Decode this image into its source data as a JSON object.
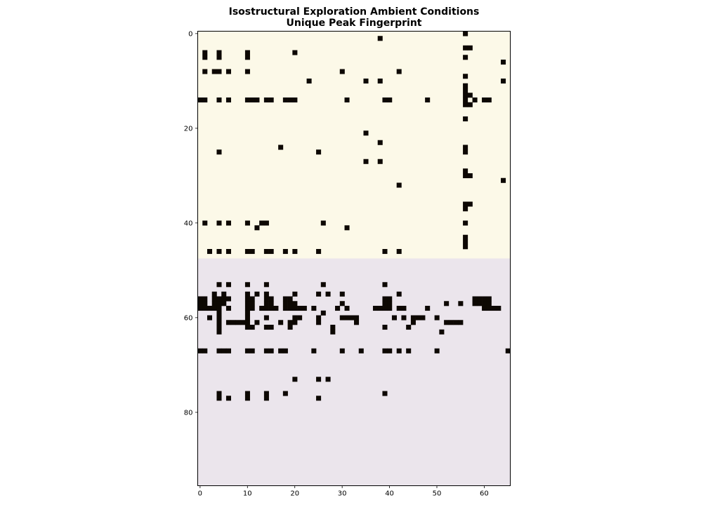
{
  "chart_data": {
    "type": "heatmap",
    "title": "Isostructural Exploration Ambient Conditions",
    "subtitle": "Unique Peak Fingerprint",
    "xlabel": "",
    "ylabel": "",
    "xlim": [
      -0.5,
      65.5
    ],
    "ylim": [
      95.5,
      -0.5
    ],
    "x_ticks": [
      0,
      10,
      20,
      30,
      40,
      50,
      60
    ],
    "y_ticks": [
      0,
      20,
      40,
      60,
      80
    ],
    "n_cols": 66,
    "n_rows": 96,
    "grid": false,
    "legend": "none",
    "row_bands": [
      {
        "rows": [
          0,
          47
        ],
        "background": "#fcf9e8"
      },
      {
        "rows": [
          48,
          95
        ],
        "background": "#ebe5ec"
      }
    ],
    "cell_color": "#0d0803",
    "cells": [
      [
        0,
        56
      ],
      [
        1,
        38
      ],
      [
        3,
        56
      ],
      [
        3,
        57
      ],
      [
        4,
        1
      ],
      [
        4,
        4
      ],
      [
        4,
        10
      ],
      [
        4,
        20
      ],
      [
        5,
        1
      ],
      [
        5,
        4
      ],
      [
        5,
        10
      ],
      [
        5,
        56
      ],
      [
        6,
        64
      ],
      [
        8,
        1
      ],
      [
        8,
        3
      ],
      [
        8,
        4
      ],
      [
        8,
        6
      ],
      [
        8,
        10
      ],
      [
        8,
        30
      ],
      [
        8,
        42
      ],
      [
        9,
        56
      ],
      [
        10,
        23
      ],
      [
        10,
        35
      ],
      [
        10,
        38
      ],
      [
        10,
        64
      ],
      [
        11,
        56
      ],
      [
        12,
        56
      ],
      [
        13,
        56
      ],
      [
        13,
        57
      ],
      [
        14,
        0
      ],
      [
        14,
        1
      ],
      [
        14,
        4
      ],
      [
        14,
        6
      ],
      [
        14,
        10
      ],
      [
        14,
        11
      ],
      [
        14,
        12
      ],
      [
        14,
        14
      ],
      [
        14,
        15
      ],
      [
        14,
        18
      ],
      [
        14,
        19
      ],
      [
        14,
        20
      ],
      [
        14,
        31
      ],
      [
        14,
        39
      ],
      [
        14,
        40
      ],
      [
        14,
        48
      ],
      [
        14,
        56
      ],
      [
        14,
        58
      ],
      [
        14,
        60
      ],
      [
        14,
        61
      ],
      [
        15,
        56
      ],
      [
        15,
        57
      ],
      [
        18,
        56
      ],
      [
        21,
        35
      ],
      [
        23,
        38
      ],
      [
        24,
        17
      ],
      [
        24,
        56
      ],
      [
        25,
        4
      ],
      [
        25,
        25
      ],
      [
        25,
        56
      ],
      [
        27,
        35
      ],
      [
        27,
        38
      ],
      [
        29,
        56
      ],
      [
        30,
        56
      ],
      [
        30,
        57
      ],
      [
        31,
        64
      ],
      [
        32,
        42
      ],
      [
        36,
        56
      ],
      [
        36,
        57
      ],
      [
        37,
        56
      ],
      [
        40,
        1
      ],
      [
        40,
        4
      ],
      [
        40,
        6
      ],
      [
        40,
        10
      ],
      [
        40,
        13
      ],
      [
        40,
        14
      ],
      [
        40,
        26
      ],
      [
        40,
        56
      ],
      [
        41,
        12
      ],
      [
        41,
        31
      ],
      [
        43,
        56
      ],
      [
        44,
        56
      ],
      [
        45,
        56
      ],
      [
        46,
        2
      ],
      [
        46,
        4
      ],
      [
        46,
        6
      ],
      [
        46,
        10
      ],
      [
        46,
        11
      ],
      [
        46,
        14
      ],
      [
        46,
        15
      ],
      [
        46,
        18
      ],
      [
        46,
        20
      ],
      [
        46,
        25
      ],
      [
        46,
        39
      ],
      [
        46,
        42
      ],
      [
        53,
        4
      ],
      [
        53,
        6
      ],
      [
        53,
        10
      ],
      [
        53,
        14
      ],
      [
        53,
        26
      ],
      [
        53,
        39
      ],
      [
        55,
        3
      ],
      [
        55,
        5
      ],
      [
        55,
        10
      ],
      [
        55,
        12
      ],
      [
        55,
        14
      ],
      [
        55,
        20
      ],
      [
        55,
        25
      ],
      [
        55,
        27
      ],
      [
        55,
        30
      ],
      [
        55,
        42
      ],
      [
        56,
        0
      ],
      [
        56,
        1
      ],
      [
        56,
        3
      ],
      [
        56,
        4
      ],
      [
        56,
        5
      ],
      [
        56,
        6
      ],
      [
        56,
        10
      ],
      [
        56,
        11
      ],
      [
        56,
        14
      ],
      [
        56,
        15
      ],
      [
        56,
        18
      ],
      [
        56,
        19
      ],
      [
        56,
        39
      ],
      [
        56,
        40
      ],
      [
        56,
        58
      ],
      [
        56,
        59
      ],
      [
        56,
        60
      ],
      [
        56,
        61
      ],
      [
        57,
        0
      ],
      [
        57,
        1
      ],
      [
        57,
        3
      ],
      [
        57,
        4
      ],
      [
        57,
        5
      ],
      [
        57,
        10
      ],
      [
        57,
        11
      ],
      [
        57,
        14
      ],
      [
        57,
        15
      ],
      [
        57,
        18
      ],
      [
        57,
        19
      ],
      [
        57,
        20
      ],
      [
        57,
        30
      ],
      [
        57,
        39
      ],
      [
        57,
        40
      ],
      [
        57,
        52
      ],
      [
        57,
        55
      ],
      [
        57,
        58
      ],
      [
        57,
        59
      ],
      [
        57,
        60
      ],
      [
        57,
        61
      ],
      [
        58,
        0
      ],
      [
        58,
        1
      ],
      [
        58,
        2
      ],
      [
        58,
        3
      ],
      [
        58,
        4
      ],
      [
        58,
        6
      ],
      [
        58,
        10
      ],
      [
        58,
        11
      ],
      [
        58,
        13
      ],
      [
        58,
        14
      ],
      [
        58,
        15
      ],
      [
        58,
        16
      ],
      [
        58,
        18
      ],
      [
        58,
        19
      ],
      [
        58,
        20
      ],
      [
        58,
        21
      ],
      [
        58,
        22
      ],
      [
        58,
        24
      ],
      [
        58,
        29
      ],
      [
        58,
        31
      ],
      [
        58,
        37
      ],
      [
        58,
        38
      ],
      [
        58,
        39
      ],
      [
        58,
        40
      ],
      [
        58,
        42
      ],
      [
        58,
        43
      ],
      [
        58,
        48
      ],
      [
        58,
        60
      ],
      [
        58,
        61
      ],
      [
        58,
        62
      ],
      [
        58,
        63
      ],
      [
        59,
        4
      ],
      [
        59,
        10
      ],
      [
        59,
        26
      ],
      [
        60,
        2
      ],
      [
        60,
        4
      ],
      [
        60,
        10
      ],
      [
        60,
        14
      ],
      [
        60,
        20
      ],
      [
        60,
        21
      ],
      [
        60,
        25
      ],
      [
        60,
        30
      ],
      [
        60,
        31
      ],
      [
        60,
        32
      ],
      [
        60,
        33
      ],
      [
        60,
        41
      ],
      [
        60,
        43
      ],
      [
        60,
        45
      ],
      [
        60,
        46
      ],
      [
        60,
        47
      ],
      [
        60,
        50
      ],
      [
        61,
        4
      ],
      [
        61,
        6
      ],
      [
        61,
        7
      ],
      [
        61,
        8
      ],
      [
        61,
        9
      ],
      [
        61,
        10
      ],
      [
        61,
        12
      ],
      [
        61,
        17
      ],
      [
        61,
        19
      ],
      [
        61,
        20
      ],
      [
        61,
        25
      ],
      [
        61,
        33
      ],
      [
        61,
        45
      ],
      [
        61,
        52
      ],
      [
        61,
        53
      ],
      [
        61,
        54
      ],
      [
        61,
        55
      ],
      [
        62,
        4
      ],
      [
        62,
        10
      ],
      [
        62,
        11
      ],
      [
        62,
        14
      ],
      [
        62,
        15
      ],
      [
        62,
        19
      ],
      [
        62,
        28
      ],
      [
        62,
        39
      ],
      [
        62,
        44
      ],
      [
        63,
        4
      ],
      [
        63,
        28
      ],
      [
        63,
        51
      ],
      [
        67,
        0
      ],
      [
        67,
        1
      ],
      [
        67,
        4
      ],
      [
        67,
        5
      ],
      [
        67,
        6
      ],
      [
        67,
        10
      ],
      [
        67,
        11
      ],
      [
        67,
        14
      ],
      [
        67,
        15
      ],
      [
        67,
        17
      ],
      [
        67,
        18
      ],
      [
        67,
        24
      ],
      [
        67,
        30
      ],
      [
        67,
        34
      ],
      [
        67,
        39
      ],
      [
        67,
        40
      ],
      [
        67,
        42
      ],
      [
        67,
        44
      ],
      [
        67,
        50
      ],
      [
        67,
        65
      ],
      [
        73,
        20
      ],
      [
        73,
        25
      ],
      [
        73,
        27
      ],
      [
        76,
        4
      ],
      [
        76,
        10
      ],
      [
        76,
        14
      ],
      [
        76,
        18
      ],
      [
        76,
        39
      ],
      [
        77,
        4
      ],
      [
        77,
        6
      ],
      [
        77,
        10
      ],
      [
        77,
        14
      ],
      [
        77,
        25
      ]
    ]
  }
}
